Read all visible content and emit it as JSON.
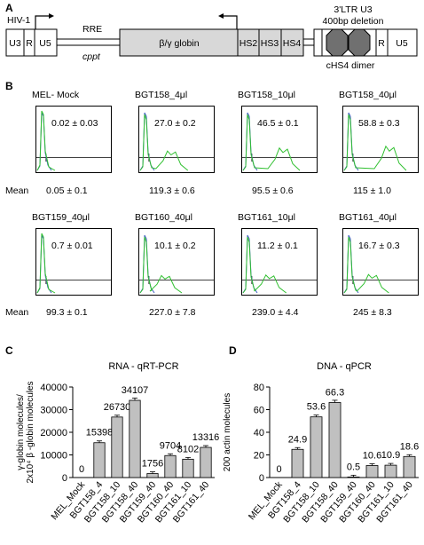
{
  "panel_labels": {
    "a": "A",
    "b": "B",
    "c": "C",
    "d": "D"
  },
  "construct": {
    "hiv_label": "HIV-1",
    "rre_label": "RRE",
    "cppt_label": "cppt",
    "u3": "U3",
    "r": "R",
    "u5": "U5",
    "globin": "β/γ globin",
    "hs2": "HS2",
    "hs3": "HS3",
    "hs4": "HS4",
    "ltr_line1": "3'LTR U3",
    "ltr_line2": "400bp deletion",
    "chs4": "cHS4 dimer",
    "r2": "R",
    "u52": "U5"
  },
  "flow": {
    "mean_label": "Mean",
    "row1": [
      {
        "title": "MEL- Mock",
        "pct": "0.02 ± 0.03",
        "mean": "0.05 ±  0.1"
      },
      {
        "title": "BGT158_4μl",
        "pct": "27.0 ± 0.2",
        "mean": "119.3 ± 0.6"
      },
      {
        "title": "BGT158_10μl",
        "pct": "46.5 ± 0.1",
        "mean": "95.5 ±  0.6"
      },
      {
        "title": "BGT158_40μl",
        "pct": "58.8 ± 0.3",
        "mean": "115 ± 1.0"
      }
    ],
    "row2": [
      {
        "title": "BGT159_40μl",
        "pct": "0.7 ±  0.01",
        "mean": "99.3 ±  0.1"
      },
      {
        "title": "BGT160_40μl",
        "pct": "10.1 ± 0.2",
        "mean": "227.0 ± 7.8"
      },
      {
        "title": "BGT161_10μl",
        "pct": "11.2 ± 0.1",
        "mean": "239.0 ±  4.4"
      },
      {
        "title": "BGT161_40μl",
        "pct": "16.7 ± 0.3",
        "mean": "245 ± 8.3"
      }
    ]
  },
  "chart_data": [
    {
      "type": "bar",
      "title": "RNA - qRT-PCR",
      "ylabel_line1": "γ-globin molecules/",
      "ylabel_line2": "2x10⁴ β -globin molecules",
      "categories": [
        "MEL_Mock",
        "BGT158_4",
        "BGT158_10",
        "BGT158_40",
        "BGT159_40",
        "BGT160_40",
        "BGT161_10",
        "BGT161_40"
      ],
      "values": [
        0,
        15398,
        26730,
        34107,
        1756,
        9704,
        8102,
        13316
      ],
      "value_labels": [
        "0",
        "15398",
        "26730",
        "34107",
        "1756",
        "9704",
        "8102",
        "13316"
      ],
      "ylim": [
        0,
        40000
      ],
      "yticks": [
        0,
        10000,
        20000,
        30000,
        40000
      ],
      "ytick_labels": [
        "0",
        "10000",
        "20000",
        "30000",
        "40000"
      ],
      "bar_color": "#c0c0c0"
    },
    {
      "type": "bar",
      "title": "DNA - qPCR",
      "ylabel_line1": "γ-globin molecules/",
      "ylabel_line2": "200 actin molecules",
      "categories": [
        "MEL_Mock",
        "BGT158_4",
        "BGT158_10",
        "BGT158_40",
        "BGT159_40",
        "BGT160_40",
        "BGT161_10",
        "BGT161_40"
      ],
      "values": [
        0,
        24.9,
        53.6,
        66.3,
        0.5,
        10.6,
        10.9,
        18.6
      ],
      "value_labels": [
        "0",
        "24.9",
        "53.6",
        "66.3",
        "0.5",
        "10.6",
        "10.9",
        "18.6"
      ],
      "ylim": [
        0,
        80
      ],
      "yticks": [
        0,
        20,
        40,
        60,
        80
      ],
      "ytick_labels": [
        "0",
        "20",
        "40",
        "60",
        "80"
      ],
      "bar_color": "#c0c0c0"
    }
  ]
}
